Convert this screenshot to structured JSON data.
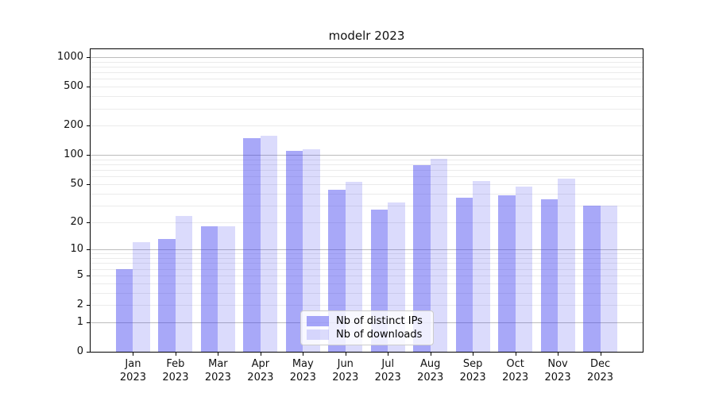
{
  "figure": {
    "title": "modelr 2023",
    "background_color": "#ffffff"
  },
  "chart_data": {
    "type": "bar",
    "title": "modelr 2023",
    "categories": [
      "Jan",
      "Feb",
      "Mar",
      "Apr",
      "May",
      "Jun",
      "Jul",
      "Aug",
      "Sep",
      "Oct",
      "Nov",
      "Dec"
    ],
    "xtick_year_line": "2023",
    "series": [
      {
        "name": "Nb of distinct IPs",
        "color": "rgba(62,62,239,0.45)",
        "perceived_color": "#a8a8f8",
        "values": [
          6,
          13,
          18,
          150,
          110,
          44,
          27,
          79,
          36,
          38,
          35,
          30
        ]
      },
      {
        "name": "Nb of downloads",
        "color": "rgba(62,62,239,0.19)",
        "perceived_color": "#dbdbfb",
        "values": [
          12,
          23,
          18,
          158,
          115,
          53,
          32,
          92,
          54,
          47,
          57,
          30
        ]
      }
    ],
    "xlabel": "",
    "ylabel": "",
    "yscale": "log1p",
    "ylim": [
      0,
      1000
    ],
    "ytick_values": [
      0,
      1,
      2,
      5,
      10,
      20,
      50,
      100,
      200,
      500,
      1000
    ],
    "ytick_labels": [
      "0",
      "1",
      "2",
      "5",
      "10",
      "20",
      "50",
      "100",
      "200",
      "500",
      "1000"
    ],
    "major_grid_values": [
      1,
      10,
      100,
      1000
    ],
    "minor_grid_values": [
      2,
      3,
      4,
      5,
      6,
      7,
      8,
      9,
      20,
      30,
      40,
      50,
      60,
      70,
      80,
      90,
      200,
      300,
      400,
      500,
      600,
      700,
      800,
      900
    ],
    "grid": "horizontal",
    "legend": {
      "position": "lower-center",
      "entries": [
        "Nb of distinct IPs",
        "Nb of downloads"
      ]
    },
    "colors": {
      "major_grid": "#bcbcbc",
      "minor_grid": "#ebebeb",
      "spine": "#000000",
      "text": "#111111"
    }
  }
}
